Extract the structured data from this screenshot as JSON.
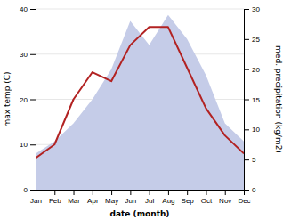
{
  "chart_data": {
    "type": "line",
    "xlabel": "date (month)",
    "ylabel": "max temp (C)",
    "y2label": "med. precipitation (kg/m2)",
    "categories": [
      "Jan",
      "Feb",
      "Mar",
      "Apr",
      "May",
      "Jun",
      "Jul",
      "Aug",
      "Sep",
      "Oct",
      "Nov",
      "Dec"
    ],
    "series": [
      {
        "type": "area",
        "axis": "y2",
        "color": "#c5cce8",
        "values": [
          6,
          8,
          11,
          15,
          20,
          28,
          24,
          29,
          25,
          19,
          11,
          8
        ]
      },
      {
        "type": "line",
        "color": "#b22222",
        "values": [
          7,
          10,
          20,
          26,
          24,
          32,
          36,
          36,
          27,
          18,
          12,
          8
        ]
      }
    ],
    "ylim": [
      0,
      40
    ],
    "yticks": [
      0,
      10,
      20,
      30,
      40
    ],
    "y2lim": [
      0,
      30
    ],
    "y2ticks": [
      0,
      5,
      10,
      15,
      20,
      25,
      30
    ],
    "grid": true
  }
}
